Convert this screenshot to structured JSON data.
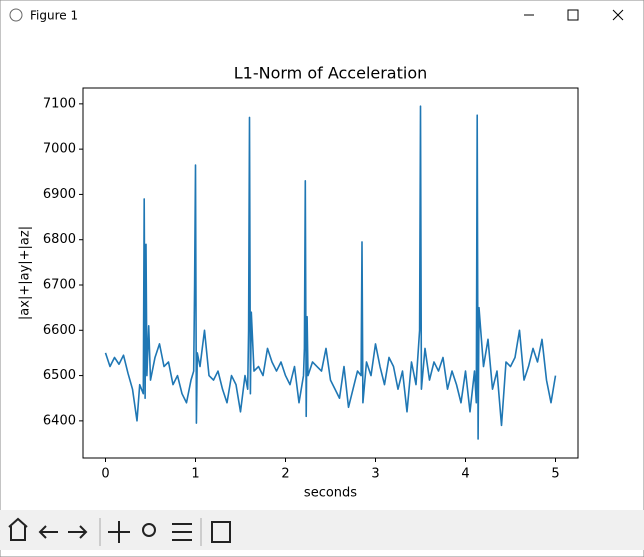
{
  "window": {
    "title": "Figure 1"
  },
  "chart_data": {
    "type": "line",
    "title": "L1-Norm of Acceleration",
    "x_label": "seconds",
    "y_label": "|ax|+|ay|+|az|",
    "xlim": [
      -0.25,
      5.25
    ],
    "ylim": [
      6318,
      7135
    ],
    "xticks": [
      0,
      1,
      2,
      3,
      4,
      5
    ],
    "yticks": [
      6400,
      6500,
      6600,
      6700,
      6800,
      6900,
      7000,
      7100
    ],
    "x": [
      0,
      0.05,
      0.1,
      0.15,
      0.2,
      0.25,
      0.3,
      0.35,
      0.38,
      0.42,
      0.43,
      0.44,
      0.45,
      0.46,
      0.48,
      0.5,
      0.55,
      0.6,
      0.65,
      0.7,
      0.75,
      0.8,
      0.85,
      0.9,
      0.95,
      0.98,
      0.99,
      1.0,
      1.01,
      1.02,
      1.05,
      1.1,
      1.15,
      1.2,
      1.25,
      1.3,
      1.35,
      1.4,
      1.45,
      1.5,
      1.55,
      1.58,
      1.59,
      1.6,
      1.61,
      1.62,
      1.65,
      1.7,
      1.75,
      1.8,
      1.85,
      1.9,
      1.95,
      2.0,
      2.05,
      2.1,
      2.15,
      2.2,
      2.21,
      2.22,
      2.23,
      2.24,
      2.25,
      2.3,
      2.35,
      2.4,
      2.45,
      2.5,
      2.55,
      2.6,
      2.65,
      2.7,
      2.75,
      2.8,
      2.84,
      2.85,
      2.86,
      2.9,
      2.95,
      3.0,
      3.05,
      3.1,
      3.15,
      3.2,
      3.25,
      3.3,
      3.35,
      3.4,
      3.45,
      3.49,
      3.5,
      3.51,
      3.55,
      3.6,
      3.65,
      3.7,
      3.75,
      3.8,
      3.85,
      3.9,
      3.95,
      4.0,
      4.05,
      4.1,
      4.12,
      4.13,
      4.14,
      4.15,
      4.2,
      4.25,
      4.3,
      4.35,
      4.4,
      4.45,
      4.5,
      4.55,
      4.6,
      4.65,
      4.7,
      4.75,
      4.8,
      4.85,
      4.9,
      4.95,
      5.0
    ],
    "series": [
      {
        "color": "#1f77b4",
        "values": [
          6550,
          6520,
          6540,
          6525,
          6545,
          6505,
          6470,
          6400,
          6480,
          6460,
          6890,
          6450,
          6790,
          6500,
          6610,
          6490,
          6540,
          6570,
          6520,
          6530,
          6480,
          6500,
          6460,
          6440,
          6490,
          6510,
          6700,
          6965,
          6395,
          6550,
          6520,
          6600,
          6500,
          6490,
          6510,
          6470,
          6440,
          6500,
          6480,
          6420,
          6500,
          6470,
          6600,
          7070,
          6460,
          6640,
          6510,
          6520,
          6500,
          6560,
          6530,
          6510,
          6530,
          6500,
          6480,
          6520,
          6440,
          6500,
          6560,
          6930,
          6410,
          6630,
          6500,
          6530,
          6520,
          6510,
          6560,
          6490,
          6470,
          6450,
          6520,
          6430,
          6470,
          6510,
          6500,
          6795,
          6440,
          6530,
          6500,
          6570,
          6520,
          6480,
          6540,
          6520,
          6470,
          6510,
          6420,
          6530,
          6480,
          6600,
          7095,
          6470,
          6560,
          6490,
          6530,
          6510,
          6540,
          6470,
          6510,
          6480,
          6440,
          6510,
          6420,
          6510,
          6440,
          7075,
          6360,
          6650,
          6520,
          6580,
          6470,
          6510,
          6390,
          6530,
          6520,
          6540,
          6600,
          6490,
          6520,
          6560,
          6530,
          6580,
          6490,
          6440,
          6500
        ]
      }
    ]
  }
}
